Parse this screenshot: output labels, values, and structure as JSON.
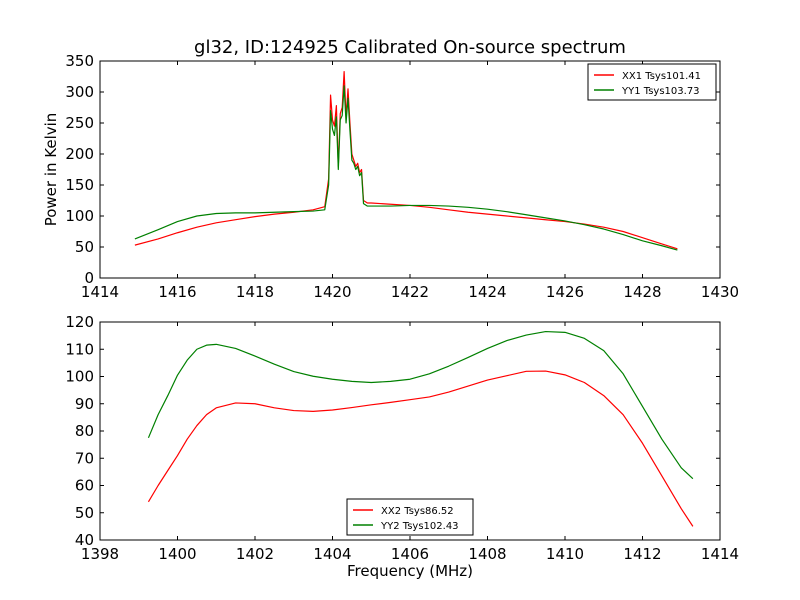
{
  "title": "gl32, ID:124925 Calibrated On-source spectrum",
  "chart_data": [
    {
      "type": "line",
      "title": "gl32, ID:124925 Calibrated On-source spectrum",
      "xlabel": "",
      "ylabel": "Power in Kelvin",
      "xlim": [
        1414,
        1430
      ],
      "ylim": [
        0,
        350
      ],
      "xticks": [
        1414,
        1416,
        1418,
        1420,
        1422,
        1424,
        1426,
        1428,
        1430
      ],
      "yticks": [
        0,
        50,
        100,
        150,
        200,
        250,
        300,
        350
      ],
      "grid": false,
      "legend_position": "top-right",
      "series": [
        {
          "name": "XX1 Tsys101.41",
          "color": "#ff0000",
          "x": [
            1414.9,
            1415.5,
            1416.0,
            1416.5,
            1417.0,
            1417.5,
            1418.0,
            1418.5,
            1419.0,
            1419.5,
            1419.8,
            1419.9,
            1419.95,
            1420.0,
            1420.05,
            1420.1,
            1420.15,
            1420.2,
            1420.25,
            1420.3,
            1420.35,
            1420.4,
            1420.45,
            1420.5,
            1420.55,
            1420.6,
            1420.65,
            1420.7,
            1420.75,
            1420.8,
            1420.9,
            1421.0,
            1421.5,
            1422.0,
            1422.5,
            1423.0,
            1423.5,
            1424.0,
            1424.5,
            1425.0,
            1425.5,
            1426.0,
            1426.5,
            1427.0,
            1427.5,
            1428.0,
            1428.5,
            1428.9
          ],
          "y": [
            53,
            63,
            73,
            82,
            89,
            94,
            99,
            103,
            106,
            110,
            115,
            160,
            295,
            255,
            245,
            278,
            180,
            265,
            275,
            333,
            260,
            305,
            250,
            200,
            190,
            180,
            185,
            170,
            175,
            125,
            121,
            121,
            119,
            117,
            114,
            110,
            106,
            103,
            100,
            97,
            94,
            91,
            87,
            82,
            75,
            65,
            55,
            47
          ]
        },
        {
          "name": "YY1 Tsys103.73",
          "color": "#008000",
          "x": [
            1414.9,
            1415.5,
            1416.0,
            1416.5,
            1417.0,
            1417.5,
            1418.0,
            1418.5,
            1419.0,
            1419.5,
            1419.8,
            1419.9,
            1419.95,
            1420.0,
            1420.05,
            1420.1,
            1420.15,
            1420.2,
            1420.25,
            1420.3,
            1420.35,
            1420.4,
            1420.45,
            1420.5,
            1420.55,
            1420.6,
            1420.65,
            1420.7,
            1420.75,
            1420.8,
            1420.9,
            1421.0,
            1421.5,
            1422.0,
            1422.5,
            1423.0,
            1423.5,
            1424.0,
            1424.5,
            1425.0,
            1425.5,
            1426.0,
            1426.5,
            1427.0,
            1427.5,
            1428.0,
            1428.5,
            1428.9
          ],
          "y": [
            63,
            78,
            91,
            100,
            104,
            105,
            105,
            106,
            107,
            108,
            110,
            150,
            270,
            240,
            230,
            260,
            175,
            255,
            262,
            310,
            250,
            290,
            238,
            190,
            185,
            175,
            180,
            165,
            170,
            120,
            116,
            116,
            116,
            117,
            117,
            116,
            114,
            111,
            107,
            102,
            97,
            92,
            86,
            79,
            70,
            60,
            52,
            45
          ]
        }
      ]
    },
    {
      "type": "line",
      "title": "",
      "xlabel": "Frequency (MHz)",
      "ylabel": "",
      "xlim": [
        1398,
        1414
      ],
      "ylim": [
        40,
        120
      ],
      "xticks": [
        1398,
        1400,
        1402,
        1404,
        1406,
        1408,
        1410,
        1412,
        1414
      ],
      "yticks": [
        40,
        50,
        60,
        70,
        80,
        90,
        100,
        110,
        120
      ],
      "grid": false,
      "legend_position": "bottom-center",
      "series": [
        {
          "name": "XX2 Tsys86.52",
          "color": "#ff0000",
          "x": [
            1399.25,
            1399.5,
            1399.75,
            1400.0,
            1400.25,
            1400.5,
            1400.75,
            1401.0,
            1401.5,
            1402.0,
            1402.5,
            1403.0,
            1403.5,
            1404.0,
            1404.5,
            1405.0,
            1405.5,
            1406.0,
            1406.5,
            1407.0,
            1407.5,
            1408.0,
            1408.5,
            1409.0,
            1409.5,
            1410.0,
            1410.5,
            1411.0,
            1411.5,
            1412.0,
            1412.5,
            1413.0,
            1413.3
          ],
          "y": [
            54,
            60,
            65.5,
            71,
            77,
            82,
            86,
            88.5,
            90.3,
            90,
            88.5,
            87.5,
            87.2,
            87.7,
            88.6,
            89.6,
            90.5,
            91.5,
            92.5,
            94.3,
            96.5,
            98.7,
            100.3,
            101.9,
            102,
            100.6,
            97.8,
            93,
            86,
            75.5,
            63.5,
            51.5,
            45
          ]
        },
        {
          "name": "YY2 Tsys102.43",
          "color": "#008000",
          "x": [
            1399.25,
            1399.5,
            1399.75,
            1400.0,
            1400.25,
            1400.5,
            1400.75,
            1401.0,
            1401.5,
            1402.0,
            1402.5,
            1403.0,
            1403.5,
            1404.0,
            1404.5,
            1405.0,
            1405.5,
            1406.0,
            1406.5,
            1407.0,
            1407.5,
            1408.0,
            1408.5,
            1409.0,
            1409.5,
            1410.0,
            1410.5,
            1411.0,
            1411.5,
            1412.0,
            1412.5,
            1413.0,
            1413.3
          ],
          "y": [
            77.5,
            86,
            93,
            100.5,
            106,
            110,
            111.5,
            111.8,
            110.3,
            107.5,
            104.5,
            101.8,
            100.1,
            99,
            98.2,
            97.8,
            98.2,
            99,
            101,
            103.8,
            107,
            110.3,
            113.2,
            115.2,
            116.5,
            116.2,
            114,
            109.5,
            101,
            89,
            77,
            66.5,
            62.5
          ]
        }
      ]
    }
  ]
}
